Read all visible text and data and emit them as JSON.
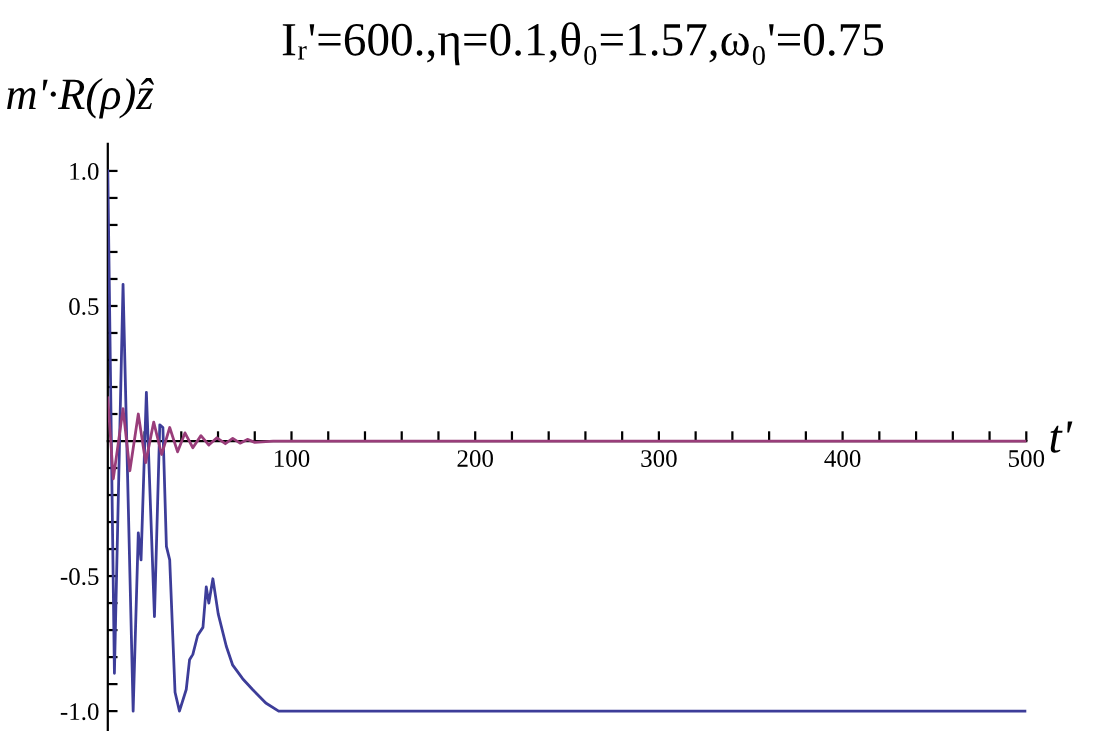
{
  "chart_data": {
    "type": "line",
    "title": "Iᵣ'=600.,η=0.1,θ₀=1.57,ω₀'=0.75",
    "xlabel": "t'",
    "ylabel": "m'·R(ρ)ẑ",
    "series": [
      {
        "color": "#3d3d99",
        "x": [
          0,
          3.6,
          8.3,
          13.8,
          16.6,
          18.1,
          21,
          25.4,
          28.3,
          30,
          31.9,
          33.7,
          36.6,
          39,
          42.7,
          44.5,
          46.3,
          48.9,
          51.8,
          53.6,
          55,
          57.2,
          60.1,
          64.5,
          68,
          73.4,
          78.8,
          86,
          93,
          100,
          500
        ],
        "values": [
          1.0,
          -0.86,
          0.58,
          -1.0,
          -0.34,
          -0.44,
          0.18,
          -0.65,
          0.06,
          0.05,
          -0.39,
          -0.44,
          -0.93,
          -1.0,
          -0.92,
          -0.81,
          -0.79,
          -0.72,
          -0.69,
          -0.54,
          -0.6,
          -0.51,
          -0.64,
          -0.76,
          -0.83,
          -0.88,
          -0.92,
          -0.97,
          -1.0,
          -1.0,
          -1.0
        ]
      },
      {
        "color": "#993d7a",
        "x": [
          0,
          3,
          8.3,
          12,
          16.6,
          20.6,
          25,
          29.3,
          33.7,
          38,
          42,
          46.3,
          50.7,
          55,
          59.4,
          64,
          68,
          72,
          76,
          80,
          90,
          100,
          500
        ],
        "values": [
          0.16,
          -0.14,
          0.12,
          -0.11,
          0.1,
          -0.08,
          0.07,
          -0.05,
          0.05,
          -0.04,
          0.03,
          -0.025,
          0.02,
          -0.015,
          0.012,
          -0.01,
          0.01,
          -0.008,
          0.006,
          -0.005,
          0.0,
          0.0,
          0.0
        ]
      }
    ],
    "xlim": [
      0,
      500
    ],
    "ylim": [
      -1.07,
      1.1
    ],
    "xticks": [
      {
        "value": 20,
        "label": null
      },
      {
        "value": 40,
        "label": null
      },
      {
        "value": 60,
        "label": null
      },
      {
        "value": 80,
        "label": null
      },
      100,
      {
        "value": 120,
        "label": null
      },
      {
        "value": 140,
        "label": null
      },
      {
        "value": 160,
        "label": null
      },
      {
        "value": 180,
        "label": null
      },
      200,
      {
        "value": 220,
        "label": null
      },
      {
        "value": 240,
        "label": null
      },
      {
        "value": 260,
        "label": null
      },
      {
        "value": 280,
        "label": null
      },
      300,
      {
        "value": 320,
        "label": null
      },
      {
        "value": 340,
        "label": null
      },
      {
        "value": 360,
        "label": null
      },
      {
        "value": 380,
        "label": null
      },
      400,
      {
        "value": 420,
        "label": null
      },
      {
        "value": 440,
        "label": null
      },
      {
        "value": 460,
        "label": null
      },
      {
        "value": 480,
        "label": null
      },
      500
    ],
    "yticks": [
      {
        "value": -1.0,
        "label": "-1.0"
      },
      {
        "value": -0.9,
        "label": null
      },
      {
        "value": -0.8,
        "label": null
      },
      {
        "value": -0.7,
        "label": null
      },
      {
        "value": -0.6,
        "label": null
      },
      {
        "value": -0.5,
        "label": "-0.5"
      },
      {
        "value": -0.4,
        "label": null
      },
      {
        "value": -0.3,
        "label": null
      },
      {
        "value": -0.2,
        "label": null
      },
      {
        "value": -0.1,
        "label": null
      },
      {
        "value": 0.1,
        "label": null
      },
      {
        "value": 0.2,
        "label": null
      },
      {
        "value": 0.3,
        "label": null
      },
      {
        "value": 0.4,
        "label": null
      },
      {
        "value": 0.5,
        "label": "0.5"
      },
      {
        "value": 0.6,
        "label": null
      },
      {
        "value": 0.7,
        "label": null
      },
      {
        "value": 0.8,
        "label": null
      },
      {
        "value": 0.9,
        "label": null
      },
      {
        "value": 1.0,
        "label": "1.0"
      }
    ],
    "grid": false,
    "legend": false
  }
}
